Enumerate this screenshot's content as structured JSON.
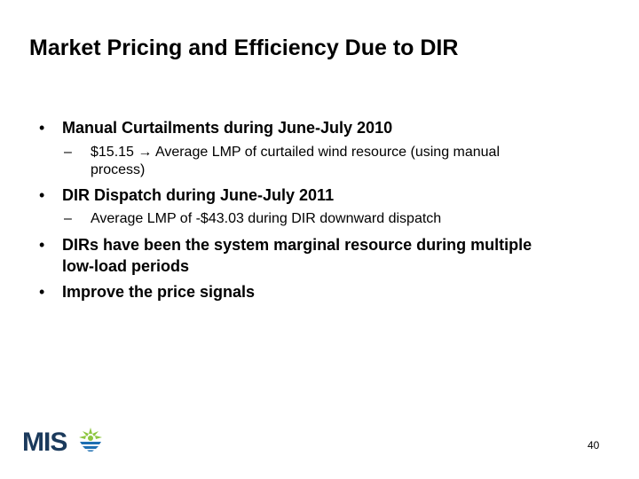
{
  "slide": {
    "title": "Market Pricing and Efficiency Due to DIR",
    "bullet_char": "•",
    "dash_char": "–",
    "bullets": [
      {
        "text": "Manual Curtailments during June-July 2010",
        "subs": [
          {
            "line1": "$15.15 → Average LMP of curtailed wind resource (using manual",
            "line2": "process)"
          }
        ]
      },
      {
        "text": "DIR Dispatch during June-July 2011",
        "subs": [
          {
            "line1": "Average LMP of -$43.03 during DIR downward dispatch"
          }
        ]
      },
      {
        "line1": "DIRs have been the system marginal resource during multiple",
        "line2": "low-load periods"
      },
      {
        "text": "Improve the price signals"
      }
    ],
    "logo_text": "MIS",
    "page_number": "40"
  },
  "colors": {
    "logo_navy": "#1b3a5c",
    "logo_green": "#8cc63f",
    "logo_blue": "#1f6fb2"
  }
}
